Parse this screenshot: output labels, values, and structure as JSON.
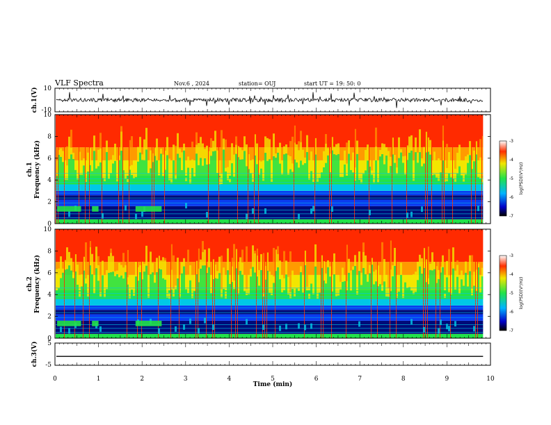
{
  "header": {
    "title": "VLF Spectra",
    "date": "Nov.6 , 2024",
    "station": "station= OUJ",
    "start": "start UT = 19: 50: 0"
  },
  "chart_data": {
    "type": "heatmap",
    "x": {
      "label": "Time (min)",
      "range": [
        0,
        10
      ],
      "ticks": [
        "0",
        "1",
        "2",
        "3",
        "4",
        "5",
        "6",
        "7",
        "8",
        "9",
        "10"
      ],
      "data_end": 9.83
    },
    "panels": [
      {
        "name": "ch1-waveform",
        "type": "line",
        "ylabel": "ch.1(V)",
        "yrange": [
          -10,
          10
        ],
        "ticks": [
          "10",
          "-10"
        ],
        "baseline": 0,
        "typical_amplitude": 2
      },
      {
        "name": "ch1-spectrogram",
        "type": "heatmap",
        "ylabel_top": "ch.1",
        "ylabel": "Frequency (kHz)",
        "yrange": [
          0,
          10
        ],
        "ticks": [
          "0",
          "2",
          "4",
          "6",
          "8",
          "10"
        ],
        "colorbar": {
          "label": "log(PSD)(V²/Hz)",
          "ticks": [
            "-3",
            "-4",
            "-5",
            "-6",
            "-7"
          ],
          "range": [
            -7,
            -3
          ]
        }
      },
      {
        "name": "ch2-spectrogram",
        "type": "heatmap",
        "ylabel_top": "ch.2",
        "ylabel": "Frequency (kHz)",
        "yrange": [
          0,
          10
        ],
        "ticks": [
          "0",
          "2",
          "4",
          "6",
          "8",
          "10"
        ],
        "colorbar": {
          "label": "log(PSD)(V²/Hz)",
          "ticks": [
            "-3",
            "-4",
            "-5",
            "-6",
            "-7"
          ],
          "range": [
            -7,
            -3
          ]
        }
      },
      {
        "name": "ch3-waveform",
        "type": "line",
        "ylabel": "ch.3(V)",
        "yrange": [
          -5,
          5
        ],
        "ticks": [
          "5",
          "-5"
        ],
        "value": -1
      }
    ]
  },
  "colors": {
    "red": "#ff2a00",
    "orange": "#ff9a00",
    "yellow": "#f2e600",
    "green": "#22e24a",
    "cyan": "#00c8e6",
    "blue": "#0a3cf0",
    "navy": "#000a78"
  }
}
